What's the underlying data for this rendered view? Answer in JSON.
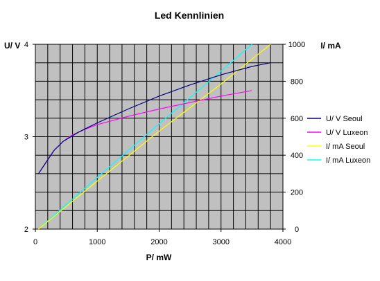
{
  "chart_data": {
    "type": "line",
    "title": "Led Kennlinien",
    "xlabel": "P/ mW",
    "ylabel_left": "U/ V",
    "ylabel_right": "I/ mA",
    "xlim": [
      0,
      4000
    ],
    "x_ticks": [
      "0",
      "1000",
      "2000",
      "3000",
      "4000"
    ],
    "ylim_left": [
      2,
      4
    ],
    "y_left_ticks": [
      "2",
      "3",
      "4"
    ],
    "ylim_right": [
      0,
      1000
    ],
    "y_right_ticks": [
      "0",
      "200",
      "400",
      "600",
      "800",
      "1000"
    ],
    "grid": true,
    "plot_background": "#c0c0c0",
    "legend_position": "right",
    "series": [
      {
        "name": "U/ V Seoul",
        "axis": "left",
        "color": "#000080",
        "points": [
          [
            50,
            2.6
          ],
          [
            150,
            2.7
          ],
          [
            300,
            2.85
          ],
          [
            450,
            2.95
          ],
          [
            700,
            3.05
          ],
          [
            1000,
            3.15
          ],
          [
            1500,
            3.3
          ],
          [
            2000,
            3.44
          ],
          [
            2500,
            3.56
          ],
          [
            3000,
            3.67
          ],
          [
            3500,
            3.76
          ],
          [
            3800,
            3.8
          ]
        ]
      },
      {
        "name": "U/ V Luxeon",
        "axis": "left",
        "color": "#ff00ff",
        "points": [
          [
            50,
            2.6
          ],
          [
            150,
            2.7
          ],
          [
            300,
            2.85
          ],
          [
            450,
            2.95
          ],
          [
            600,
            3.02
          ],
          [
            800,
            3.08
          ],
          [
            1000,
            3.13
          ],
          [
            1500,
            3.22
          ],
          [
            2000,
            3.3
          ],
          [
            2500,
            3.37
          ],
          [
            3000,
            3.44
          ],
          [
            3500,
            3.5
          ]
        ]
      },
      {
        "name": "I/ mA Seoul",
        "axis": "right",
        "color": "#ffff00",
        "points": [
          [
            50,
            0
          ],
          [
            1000,
            260
          ],
          [
            2000,
            530
          ],
          [
            3000,
            785
          ],
          [
            3800,
            1000
          ]
        ]
      },
      {
        "name": "I/ mA Luxeon",
        "axis": "right",
        "color": "#00ffff",
        "points": [
          [
            50,
            0
          ],
          [
            1000,
            280
          ],
          [
            2000,
            570
          ],
          [
            3000,
            855
          ],
          [
            3500,
            1000
          ]
        ]
      }
    ]
  }
}
